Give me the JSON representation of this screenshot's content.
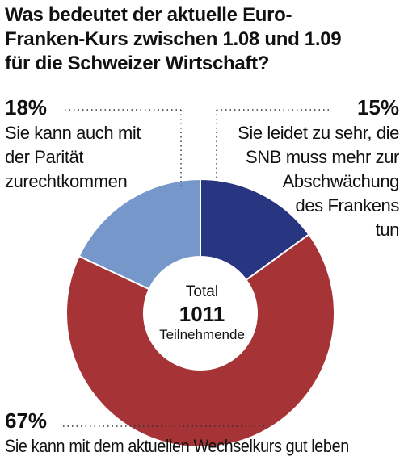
{
  "chart_data": {
    "type": "pie",
    "title": "Was bedeutet der aktuelle Euro-Franken-Kurs zwischen 1.08 und 1.09 für die Schweizer Wirtschaft?",
    "title_lines": [
      "Was bedeutet der aktuelle Euro-",
      "Franken-Kurs zwischen 1.08 und 1.09",
      "für die Schweizer Wirtschaft?"
    ],
    "center": {
      "label": "Total",
      "value": "1011",
      "unit": "Teilnehmende"
    },
    "slices": [
      {
        "value": 15,
        "percent_label": "15%",
        "color": "#283580",
        "label_lines": [
          "Sie leidet zu sehr, die",
          "SNB muss mehr zur",
          "Abschwächung",
          "des Frankens",
          "tun"
        ]
      },
      {
        "value": 67,
        "percent_label": "67%",
        "color": "#a63336",
        "label_lines": [
          "Sie kann mit dem aktuellen Wechselkurs gut leben"
        ]
      },
      {
        "value": 18,
        "percent_label": "18%",
        "color": "#7597c9",
        "label_lines": [
          "Sie kann auch mit",
          "der Parität",
          "zurechtkommen"
        ]
      }
    ]
  }
}
